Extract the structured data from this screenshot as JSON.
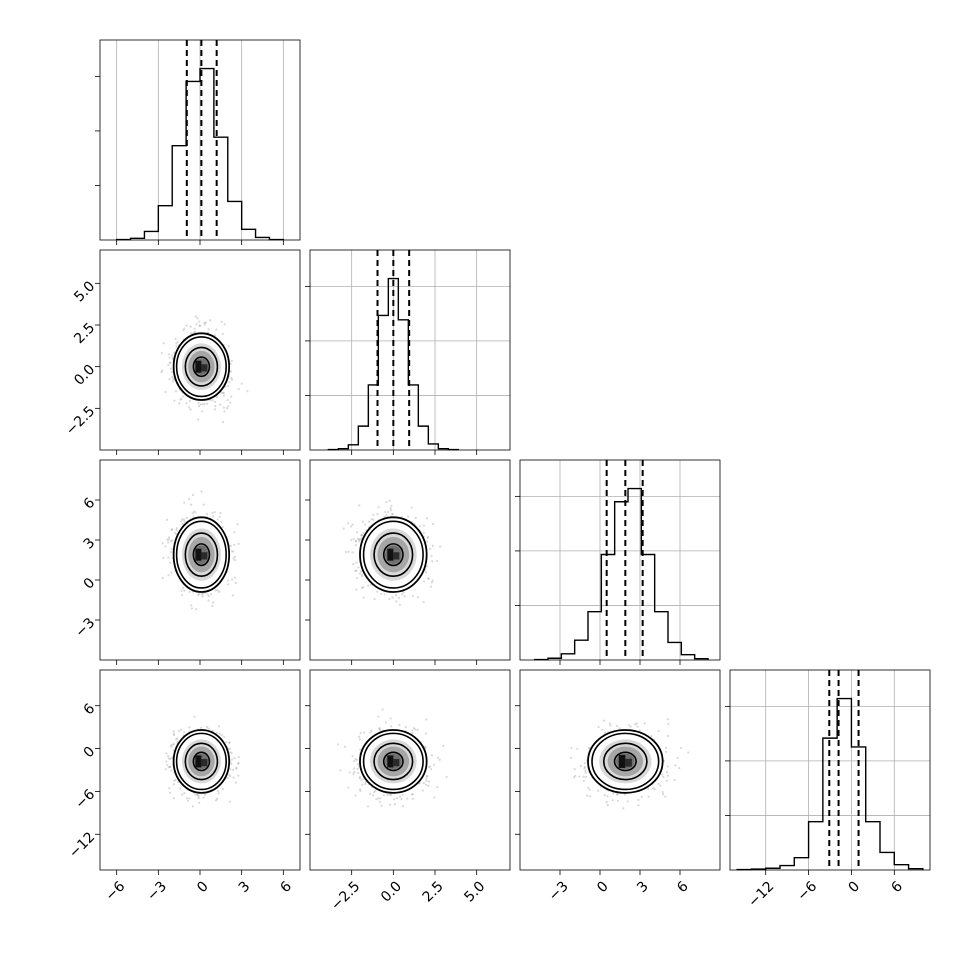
{
  "chart_data": {
    "type": "corner",
    "title": "",
    "parameters": [
      {
        "xlim": [
          -7.2,
          7.2
        ],
        "ticks": [
          -6,
          -3,
          0,
          3,
          6
        ],
        "tick_labels": [
          "−6",
          "−3",
          "0",
          "3",
          "6"
        ],
        "median": 0.1,
        "quantiles": [
          -0.95,
          0.1,
          1.2
        ],
        "sigma": 1.0,
        "hist_density_scale": 1.0
      },
      {
        "xlim": [
          -5.0,
          7.0
        ],
        "ticks": [
          -2.5,
          0.0,
          2.5,
          5.0
        ],
        "tick_labels": [
          "−2.5",
          "0.0",
          "2.5",
          "5.0"
        ],
        "median": 0.0,
        "quantiles": [
          -0.95,
          0.0,
          0.95
        ],
        "sigma": 1.0
      },
      {
        "xlim": [
          -6.0,
          9.0
        ],
        "ticks": [
          -3,
          0,
          3,
          6
        ],
        "tick_labels": [
          "−3",
          "0",
          "3",
          "6"
        ],
        "median": 1.9,
        "quantiles": [
          0.5,
          1.9,
          3.2
        ],
        "sigma": 1.4
      },
      {
        "xlim": [
          -17.0,
          11.0
        ],
        "ticks": [
          -12,
          -6,
          0,
          6
        ],
        "tick_labels": [
          "−12",
          "−6",
          "0",
          "6"
        ],
        "median": -1.8,
        "quantiles": [
          -3.1,
          -1.8,
          1.0
        ],
        "sigma": 2.2
      }
    ],
    "histograms": [
      {
        "bin_centers": [
          -5.5,
          -4.5,
          -3.5,
          -2.5,
          -1.5,
          -0.5,
          0.5,
          1.5,
          2.5,
          3.5,
          4.5,
          5.5
        ],
        "values": [
          1,
          4,
          20,
          80,
          220,
          370,
          400,
          240,
          90,
          25,
          6,
          1
        ]
      },
      {
        "bin_centers": [
          -3.6,
          -3.0,
          -2.4,
          -1.8,
          -1.2,
          -0.6,
          0.0,
          0.6,
          1.2,
          1.8,
          2.4,
          3.0,
          3.6
        ],
        "values": [
          1,
          3,
          12,
          55,
          150,
          310,
          395,
          300,
          150,
          55,
          14,
          3,
          1
        ]
      },
      {
        "bin_centers": [
          -4.4,
          -3.4,
          -2.4,
          -1.4,
          -0.4,
          0.6,
          1.6,
          2.6,
          3.6,
          4.6,
          5.6,
          6.6,
          7.6
        ],
        "values": [
          1,
          4,
          14,
          45,
          110,
          240,
          360,
          390,
          240,
          110,
          40,
          12,
          3
        ]
      },
      {
        "bin_centers": [
          -15.0,
          -13.0,
          -11.0,
          -9.0,
          -7.0,
          -5.0,
          -3.0,
          -1.0,
          1.0,
          3.0,
          5.0,
          7.0,
          9.0
        ],
        "values": [
          1,
          2,
          4,
          10,
          28,
          110,
          300,
          390,
          280,
          110,
          40,
          12,
          3
        ]
      }
    ],
    "pair_panels": [
      {
        "row": 1,
        "col": 0,
        "center": [
          0.1,
          0.0
        ]
      },
      {
        "row": 2,
        "col": 0,
        "center": [
          0.1,
          1.9
        ]
      },
      {
        "row": 2,
        "col": 1,
        "center": [
          0.0,
          1.9
        ]
      },
      {
        "row": 3,
        "col": 0,
        "center": [
          0.1,
          -1.8
        ]
      },
      {
        "row": 3,
        "col": 1,
        "center": [
          0.0,
          -1.8
        ]
      },
      {
        "row": 3,
        "col": 2,
        "center": [
          1.9,
          -1.8
        ]
      }
    ],
    "colors": {
      "line": "#000000",
      "grid": "#b0b0b0",
      "points": "#808080"
    },
    "grid": true
  }
}
